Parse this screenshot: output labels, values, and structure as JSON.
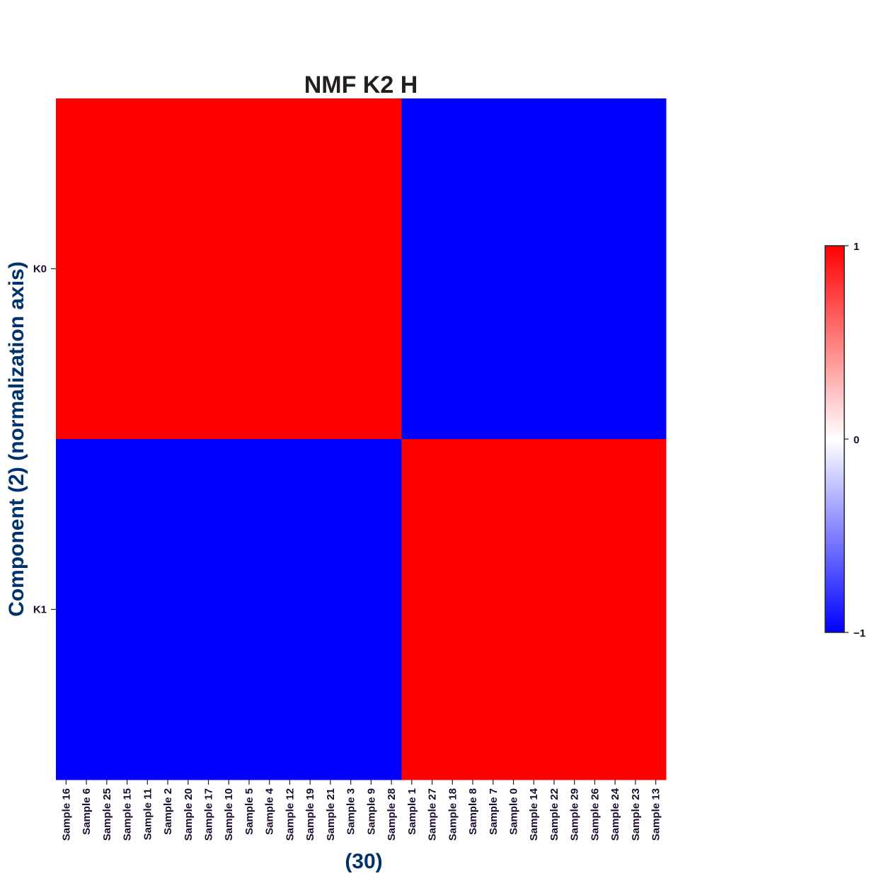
{
  "chart_data": {
    "type": "heatmap",
    "title": "NMF K2 H",
    "xlabel": "(30)",
    "ylabel": "Component (2) (normalization axis)",
    "rows": [
      "K0",
      "K1"
    ],
    "columns": [
      "Sample 16",
      "Sample 6",
      "Sample 25",
      "Sample 15",
      "Sample 11",
      "Sample 2",
      "Sample 20",
      "Sample 17",
      "Sample 10",
      "Sample 5",
      "Sample 4",
      "Sample 12",
      "Sample 19",
      "Sample 21",
      "Sample 3",
      "Sample 9",
      "Sample 28",
      "Sample 1",
      "Sample 27",
      "Sample 18",
      "Sample 8",
      "Sample 7",
      "Sample 0",
      "Sample 14",
      "Sample 22",
      "Sample 29",
      "Sample 26",
      "Sample 24",
      "Sample 23",
      "Sample 13"
    ],
    "values": [
      [
        1,
        1,
        1,
        1,
        1,
        1,
        1,
        1,
        1,
        1,
        1,
        1,
        1,
        1,
        1,
        1,
        1,
        -1,
        -1,
        -1,
        -1,
        -1,
        -1,
        -1,
        -1,
        -1,
        -1,
        -1,
        -1,
        -1
      ],
      [
        -1,
        -1,
        -1,
        -1,
        -1,
        -1,
        -1,
        -1,
        -1,
        -1,
        -1,
        -1,
        -1,
        -1,
        -1,
        -1,
        -1,
        1,
        1,
        1,
        1,
        1,
        1,
        1,
        1,
        1,
        1,
        1,
        1,
        1
      ]
    ],
    "colorscale": {
      "min": -1,
      "max": 1,
      "low_color": "#0000ff",
      "mid_color": "#ffffff",
      "high_color": "#ff0000"
    },
    "colorbar": {
      "ticks": [
        1,
        0,
        -1
      ],
      "tick_labels": [
        "1",
        "0",
        "−1"
      ]
    },
    "colors": {
      "title": "#231f20",
      "axis_label": "#00336b",
      "tick_label": "#1a0a2e"
    }
  }
}
